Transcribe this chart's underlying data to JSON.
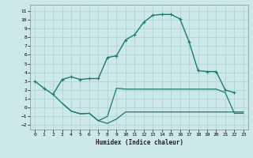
{
  "xlabel": "Humidex (Indice chaleur)",
  "background_color": "#cce8e8",
  "grid_color": "#afd4d4",
  "line_color": "#1a7a6e",
  "series": [
    {
      "x": [
        0,
        1,
        2,
        3,
        4,
        5,
        6,
        7,
        8,
        9,
        10,
        11,
        12,
        13,
        14,
        15,
        16,
        17,
        18,
        19,
        20,
        21,
        22
      ],
      "y": [
        3.0,
        2.2,
        1.5,
        3.2,
        3.5,
        3.2,
        3.3,
        3.3,
        5.7,
        5.9,
        7.7,
        8.3,
        9.7,
        10.5,
        10.6,
        10.6,
        10.1,
        7.5,
        4.2,
        4.1,
        4.1,
        2.0,
        1.7
      ],
      "marker": true,
      "linewidth": 1.0
    },
    {
      "x": [
        2,
        3,
        4,
        5,
        6,
        7,
        8,
        9,
        10,
        11,
        12,
        13,
        14,
        15,
        16,
        17,
        18,
        19,
        20,
        21,
        22,
        23
      ],
      "y": [
        1.5,
        0.5,
        -0.4,
        -0.7,
        -0.65,
        -1.5,
        -1.0,
        2.2,
        2.1,
        2.1,
        2.1,
        2.1,
        2.1,
        2.1,
        2.1,
        2.1,
        2.1,
        2.1,
        2.1,
        1.7,
        -0.65,
        -0.65
      ],
      "marker": false,
      "linewidth": 0.9
    },
    {
      "x": [
        3,
        4,
        5,
        6,
        7,
        8,
        9,
        10,
        11,
        12,
        13,
        14,
        15,
        16,
        17,
        18,
        19,
        20,
        21,
        22,
        23
      ],
      "y": [
        0.5,
        -0.4,
        -0.7,
        -0.65,
        -1.5,
        -1.8,
        -1.3,
        -0.5,
        -0.5,
        -0.5,
        -0.5,
        -0.5,
        -0.5,
        -0.5,
        -0.5,
        -0.5,
        -0.5,
        -0.5,
        -0.5,
        -0.5,
        -0.5
      ],
      "marker": false,
      "linewidth": 0.9
    }
  ],
  "ylim": [
    -2.5,
    11.7
  ],
  "xlim": [
    -0.5,
    23.5
  ],
  "yticks": [
    -2,
    -1,
    0,
    1,
    2,
    3,
    4,
    5,
    6,
    7,
    8,
    9,
    10,
    11
  ],
  "xticks": [
    0,
    1,
    2,
    3,
    4,
    5,
    6,
    7,
    8,
    9,
    10,
    11,
    12,
    13,
    14,
    15,
    16,
    17,
    18,
    19,
    20,
    21,
    22,
    23
  ]
}
